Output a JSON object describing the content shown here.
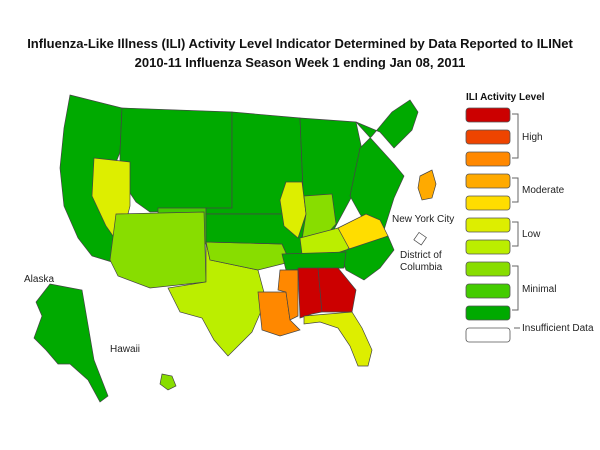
{
  "title_line1": "Influenza-Like Illness (ILI) Activity Level Indicator Determined by Data Reported to ILINet",
  "title_line2": "2010-11  Influenza Season Week  1 ending Jan 08, 2011",
  "map_labels": {
    "alaska": "Alaska",
    "hawaii": "Hawaii",
    "nyc": "New York City",
    "dc_line1": "District of",
    "dc_line2": "Columbia"
  },
  "legend": {
    "title": "ILI Activity Level",
    "levels": [
      {
        "level": 10,
        "color": "#cc0000"
      },
      {
        "level": 9,
        "color": "#ee4400"
      },
      {
        "level": 8,
        "color": "#ff8800"
      },
      {
        "level": 7,
        "color": "#ffaa00"
      },
      {
        "level": 6,
        "color": "#ffdd00"
      },
      {
        "level": 5,
        "color": "#ddee00"
      },
      {
        "level": 4,
        "color": "#bbee00"
      },
      {
        "level": 3,
        "color": "#88dd00"
      },
      {
        "level": 2,
        "color": "#44cc00"
      },
      {
        "level": 1,
        "color": "#00aa00"
      },
      {
        "level": 0,
        "color": "#ffffff"
      }
    ],
    "groups": {
      "high": "High",
      "moderate": "Moderate",
      "low": "Low",
      "minimal": "Minimal",
      "insufficient": "Insufficient Data"
    }
  },
  "region_levels": {
    "west": 1,
    "mountain": 1,
    "nevada": 5,
    "colorado": 2,
    "southwest": 3,
    "texas": 4,
    "plains": 1,
    "oklahoma": 3,
    "midwest": 1,
    "illinois": 5,
    "ohio_valley": 3,
    "kentucky": 4,
    "virginia": 6,
    "northeast": 1,
    "louisiana": 8,
    "mississippi": 8,
    "alabama": 10,
    "georgia": 10,
    "tennessee": 1,
    "carolinas": 1,
    "florida": 5,
    "alaska": 1,
    "hawaii": 3,
    "nyc": 7,
    "dc": 0
  }
}
